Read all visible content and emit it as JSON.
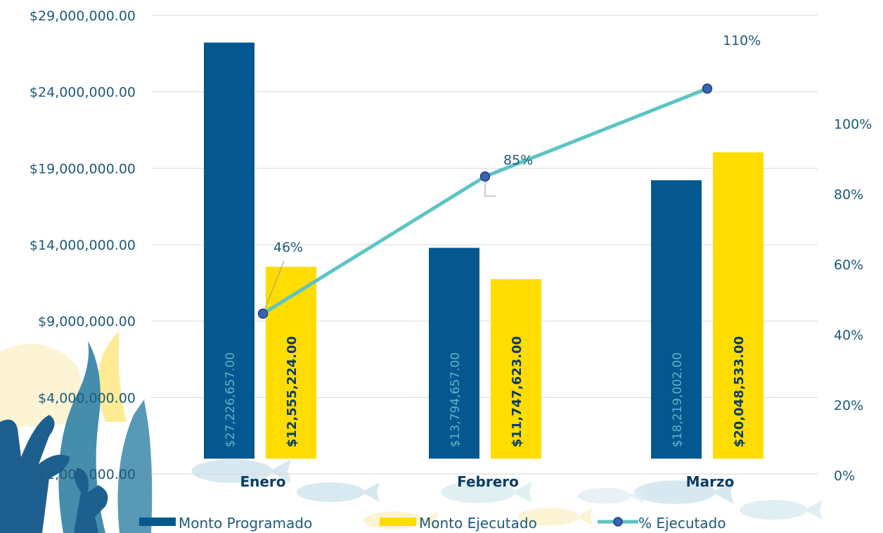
{
  "chart_data": {
    "type": "bar",
    "categories": [
      "Enero",
      "Febrero",
      "Marzo"
    ],
    "series": [
      {
        "name": "Monto Programado",
        "type": "bar",
        "axis": "left",
        "color": "#05578f",
        "values": [
          27226657.0,
          13794657.0,
          18219002.0
        ],
        "labels": [
          "$27,226,657.00",
          "$13,794,657.00",
          "$18,219,002.00"
        ]
      },
      {
        "name": "Monto Ejecutado",
        "type": "bar",
        "axis": "left",
        "color": "#ffdd00",
        "values": [
          12555224.0,
          11747623.0,
          20048533.0
        ],
        "labels": [
          "$12,555,224.00",
          "$11,747,623.00",
          "$20,048,533.00"
        ]
      },
      {
        "name": "% Ejecutado",
        "type": "line",
        "axis": "right",
        "color": "#5cc4c4",
        "marker_color": "#3a62b5",
        "values": [
          46,
          85,
          110
        ],
        "labels": [
          "46%",
          "85%",
          "110%"
        ]
      }
    ],
    "y_left": {
      "ylim": [
        -1000000,
        29000000
      ],
      "ticks": [
        -1000000,
        4000000,
        9000000,
        14000000,
        19000000,
        24000000,
        29000000
      ],
      "tick_labels": [
        "-$1,000,000.00",
        "$4,000,000.00",
        "$9,000,000.00",
        "$14,000,000.00",
        "$19,000,000.00",
        "$24,000,000.00",
        "$29,000,000.00"
      ]
    },
    "y_right": {
      "ylim": [
        0,
        120
      ],
      "ticks": [
        0,
        20,
        40,
        60,
        80,
        100
      ],
      "tick_labels": [
        "0%",
        "20%",
        "40%",
        "60%",
        "80%",
        "100%"
      ]
    },
    "grid": true,
    "legend_position": "bottom"
  }
}
